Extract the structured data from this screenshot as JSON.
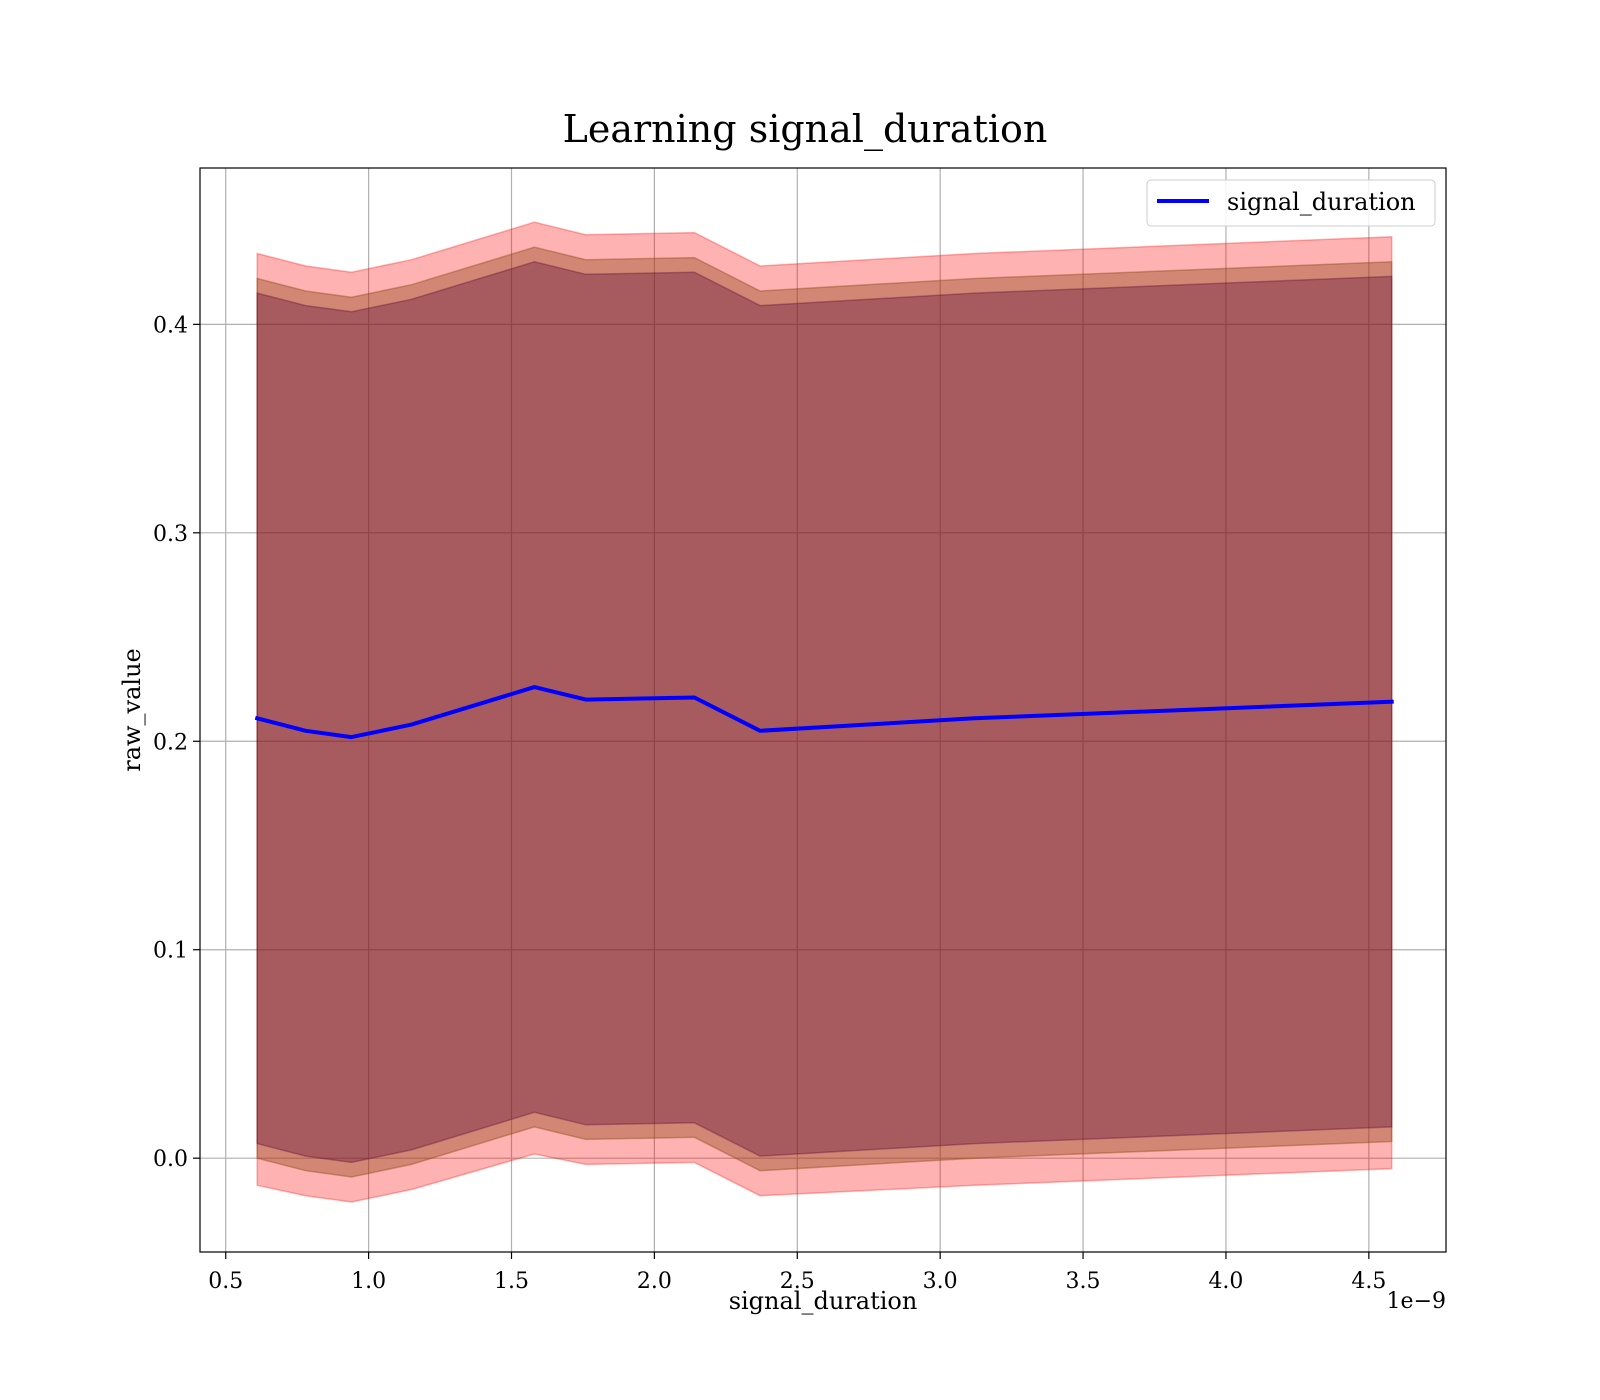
{
  "chart_data": {
    "type": "area",
    "title": "Learning signal_duration",
    "xlabel": "signal_duration",
    "ylabel": "raw_value",
    "x_offset_label": "1e−9",
    "xlim": [
      0.41,
      4.77
    ],
    "ylim": [
      -0.045,
      0.475
    ],
    "x_ticks": [
      0.5,
      1.0,
      1.5,
      2.0,
      2.5,
      3.0,
      3.5,
      4.0,
      4.5
    ],
    "x_tick_labels": [
      "0.5",
      "1.0",
      "1.5",
      "2.0",
      "2.5",
      "3.0",
      "3.5",
      "4.0",
      "4.5"
    ],
    "y_ticks": [
      0.0,
      0.1,
      0.2,
      0.3,
      0.4
    ],
    "y_tick_labels": [
      "0.0",
      "0.1",
      "0.2",
      "0.3",
      "0.4"
    ],
    "grid": true,
    "legend_position": "top-right",
    "x": [
      0.61,
      0.78,
      0.94,
      1.15,
      1.58,
      1.76,
      2.14,
      2.37,
      3.12,
      4.58
    ],
    "series": [
      {
        "name": "signal_duration",
        "color": "#0000ff",
        "values": [
          0.211,
          0.205,
          0.202,
          0.208,
          0.226,
          0.22,
          0.221,
          0.205,
          0.211,
          0.219
        ]
      }
    ],
    "bands": [
      {
        "color": "#ff0000",
        "opacity": 0.3,
        "upper": [
          0.434,
          0.428,
          0.425,
          0.431,
          0.449,
          0.443,
          0.444,
          0.428,
          0.434,
          0.442
        ],
        "lower": [
          -0.013,
          -0.018,
          -0.021,
          -0.015,
          0.002,
          -0.003,
          -0.002,
          -0.018,
          -0.013,
          -0.005
        ]
      },
      {
        "color": "#8b4513",
        "opacity": 0.4,
        "upper": [
          0.422,
          0.416,
          0.413,
          0.419,
          0.437,
          0.431,
          0.432,
          0.416,
          0.422,
          0.43
        ],
        "lower": [
          0.0,
          -0.006,
          -0.009,
          -0.003,
          0.015,
          0.009,
          0.01,
          -0.006,
          0.0,
          0.008
        ]
      },
      {
        "color": "#5a0a3a",
        "opacity": 0.35,
        "upper": [
          0.415,
          0.409,
          0.406,
          0.412,
          0.43,
          0.424,
          0.425,
          0.409,
          0.415,
          0.423
        ],
        "lower": [
          0.007,
          0.001,
          -0.002,
          0.004,
          0.022,
          0.016,
          0.017,
          0.001,
          0.007,
          0.015
        ]
      }
    ]
  }
}
